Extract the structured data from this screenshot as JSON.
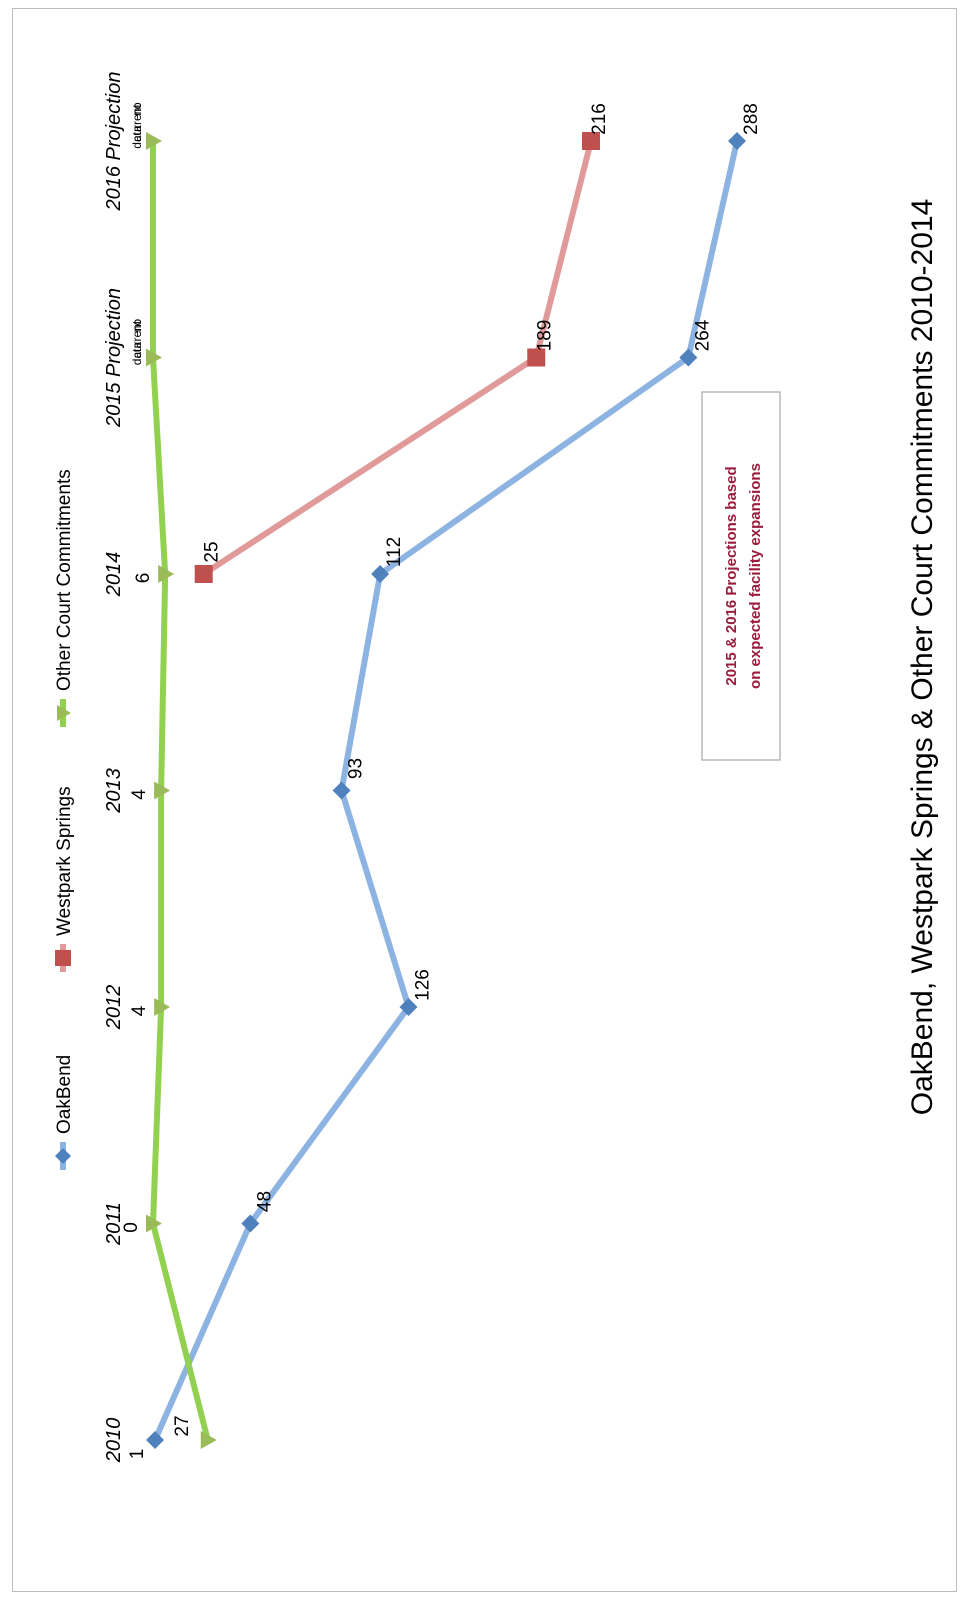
{
  "chart_data": {
    "type": "line",
    "title": "OakBend, Westpark Springs & Other Court Commitments 2010-2014",
    "categories": [
      "2010",
      "2011",
      "2012",
      "2013",
      "2014",
      "2015 Projection",
      "2016 Projection"
    ],
    "series": [
      {
        "name": "OakBend",
        "color": "#8db3e2",
        "marker_color": "#4f81bd",
        "marker": "diamond",
        "values": [
          1,
          48,
          126,
          93,
          112,
          264,
          288
        ],
        "labels": [
          "1",
          "48",
          "126",
          "93",
          "112",
          "264",
          "288"
        ]
      },
      {
        "name": "Westpark Springs",
        "color": "#e09a9a",
        "marker_color": "#c0504d",
        "marker": "square",
        "values": [
          null,
          null,
          null,
          null,
          25,
          189,
          216
        ],
        "labels": [
          "",
          "",
          "",
          "",
          "25",
          "189",
          "216"
        ]
      },
      {
        "name": "Other Court Commitments",
        "color": "#92d050",
        "marker_color": "#9bbb59",
        "marker": "triangle",
        "values": [
          27,
          0,
          4,
          4,
          6,
          0,
          0
        ],
        "labels": [
          "27",
          "0",
          "4",
          "4",
          "6",
          "",
          ""
        ],
        "no_data_label": "no current data"
      }
    ],
    "ylim": [
      0,
      320
    ],
    "grid": false,
    "legend_position": "bottom",
    "annotation": {
      "line1": "2015 & 2016 Projections based",
      "line2": "on expected facility expansions"
    }
  }
}
